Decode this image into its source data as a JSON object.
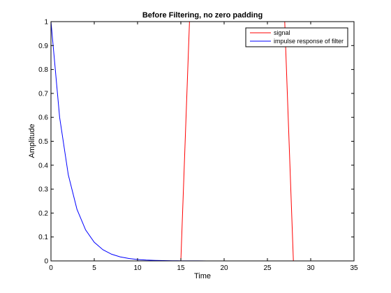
{
  "chart_data": {
    "type": "line",
    "title": "Before Filtering, no zero padding",
    "xlabel": "Time",
    "ylabel": "Amplitude",
    "xlim": [
      0,
      35
    ],
    "ylim": [
      0,
      1
    ],
    "xticks": [
      0,
      5,
      10,
      15,
      20,
      25,
      30,
      35
    ],
    "yticks": [
      0,
      0.1,
      0.2,
      0.3,
      0.4,
      0.5,
      0.6,
      0.7,
      0.8,
      0.9,
      1
    ],
    "grid": false,
    "legend_position": "top-right",
    "series": [
      {
        "name": "signal",
        "color": "#ff0000",
        "x": [
          0,
          1,
          2,
          3,
          4,
          5,
          6,
          7,
          8,
          9,
          10,
          11,
          12,
          13,
          14,
          15,
          16,
          17,
          18,
          19,
          20,
          21,
          22,
          23,
          24,
          25,
          26,
          27,
          28
        ],
        "y": [
          0,
          0,
          0,
          0,
          0,
          0,
          0,
          0,
          0,
          0,
          0,
          0,
          0,
          0,
          0,
          0,
          1,
          1,
          1,
          1,
          1,
          1,
          1,
          1,
          1,
          1,
          1,
          1,
          0
        ]
      },
      {
        "name": "impulse response of filter",
        "color": "#0000ff",
        "x": [
          0,
          1,
          2,
          3,
          4,
          5,
          6,
          7,
          8,
          9,
          10,
          11,
          12,
          13,
          14,
          15,
          16,
          17,
          18,
          19,
          20,
          21,
          22,
          23,
          24,
          25,
          26,
          27,
          28,
          29,
          30,
          31
        ],
        "y": [
          1,
          0.6,
          0.36,
          0.216,
          0.1296,
          0.0778,
          0.0467,
          0.028,
          0.0168,
          0.0101,
          0.006,
          0.0036,
          0.0022,
          0.0013,
          0.0008,
          0.0005,
          0.0003,
          0.0002,
          0.0001,
          0.0001,
          0,
          0,
          0,
          0,
          0,
          0,
          0,
          0,
          0,
          0,
          0,
          0
        ]
      }
    ]
  }
}
